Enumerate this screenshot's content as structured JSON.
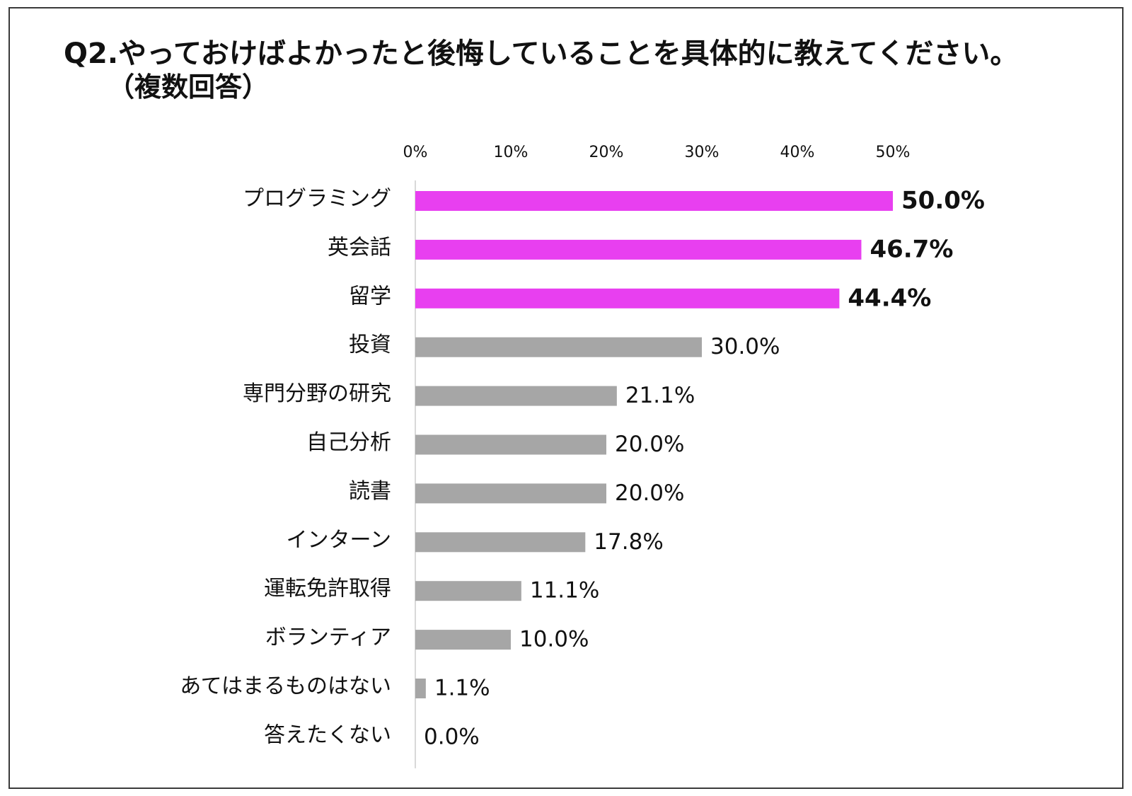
{
  "header": {
    "title": "Q2.やっておけばよかったと後悔していることを具体的に教えてください。",
    "subtitle": "（複数回答）"
  },
  "colors": {
    "highlight": "#e83ff0",
    "default": "#a6a6a6",
    "axis": "#d9d9d9",
    "text": "#111111"
  },
  "chart_data": {
    "type": "bar",
    "orientation": "horizontal",
    "title": "Q2.やっておけばよかったと後悔していることを具体的に教えてください。",
    "subtitle": "（複数回答）",
    "xlabel": "",
    "ylabel": "",
    "xlim": [
      0,
      50
    ],
    "xticks": [
      0,
      10,
      20,
      30,
      40,
      50
    ],
    "xtick_labels": [
      "0%",
      "10%",
      "20%",
      "30%",
      "40%",
      "50%"
    ],
    "grid": false,
    "legend": "none",
    "categories": [
      "プログラミング",
      "英会話",
      "留学",
      "投資",
      "専門分野の研究",
      "自己分析",
      "読書",
      "インターン",
      "運転免許取得",
      "ボランティア",
      "あてはまるものはない",
      "答えたくない"
    ],
    "values": [
      50.0,
      46.7,
      44.4,
      30.0,
      21.1,
      20.0,
      20.0,
      17.8,
      11.1,
      10.0,
      1.1,
      0.0
    ],
    "value_labels": [
      "50.0%",
      "46.7%",
      "44.4%",
      "30.0%",
      "21.1%",
      "20.0%",
      "20.0%",
      "17.8%",
      "11.1%",
      "10.0%",
      "1.1%",
      "0.0%"
    ],
    "highlighted": [
      true,
      true,
      true,
      false,
      false,
      false,
      false,
      false,
      false,
      false,
      false,
      false
    ]
  }
}
